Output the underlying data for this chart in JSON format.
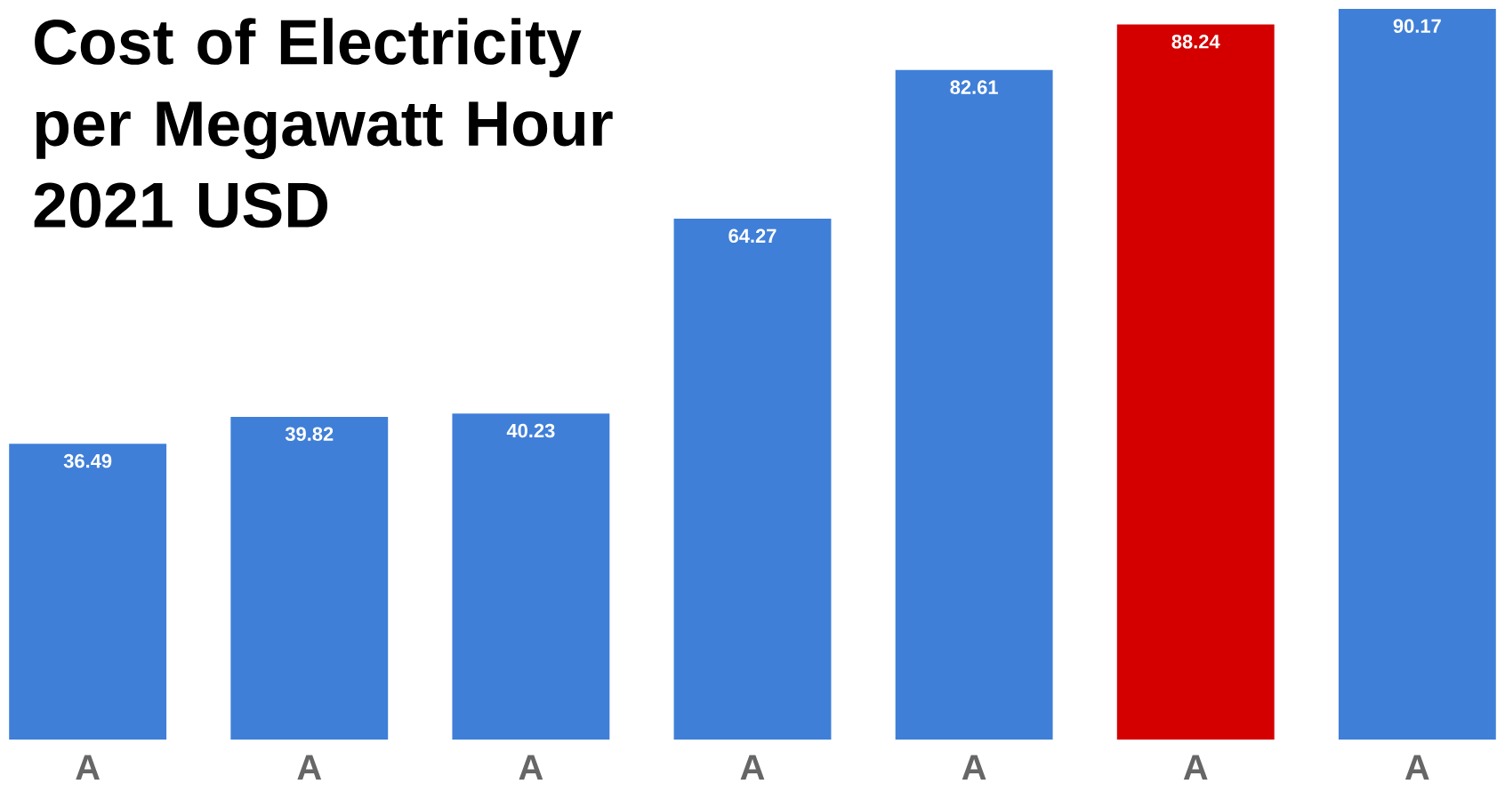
{
  "chart_data": {
    "type": "bar",
    "title": "Cost of Electricity per Megawatt Hour 2021 USD",
    "categories": [
      "A",
      "A",
      "A",
      "A",
      "A",
      "A",
      "A"
    ],
    "values": [
      36.49,
      39.82,
      40.23,
      64.27,
      82.61,
      88.24,
      90.17
    ],
    "colors": [
      "#3f7fd8",
      "#3f7fd8",
      "#3f7fd8",
      "#3f7fd8",
      "#3f7fd8",
      "#d40000",
      "#3f7fd8"
    ],
    "data_labels": true
  }
}
